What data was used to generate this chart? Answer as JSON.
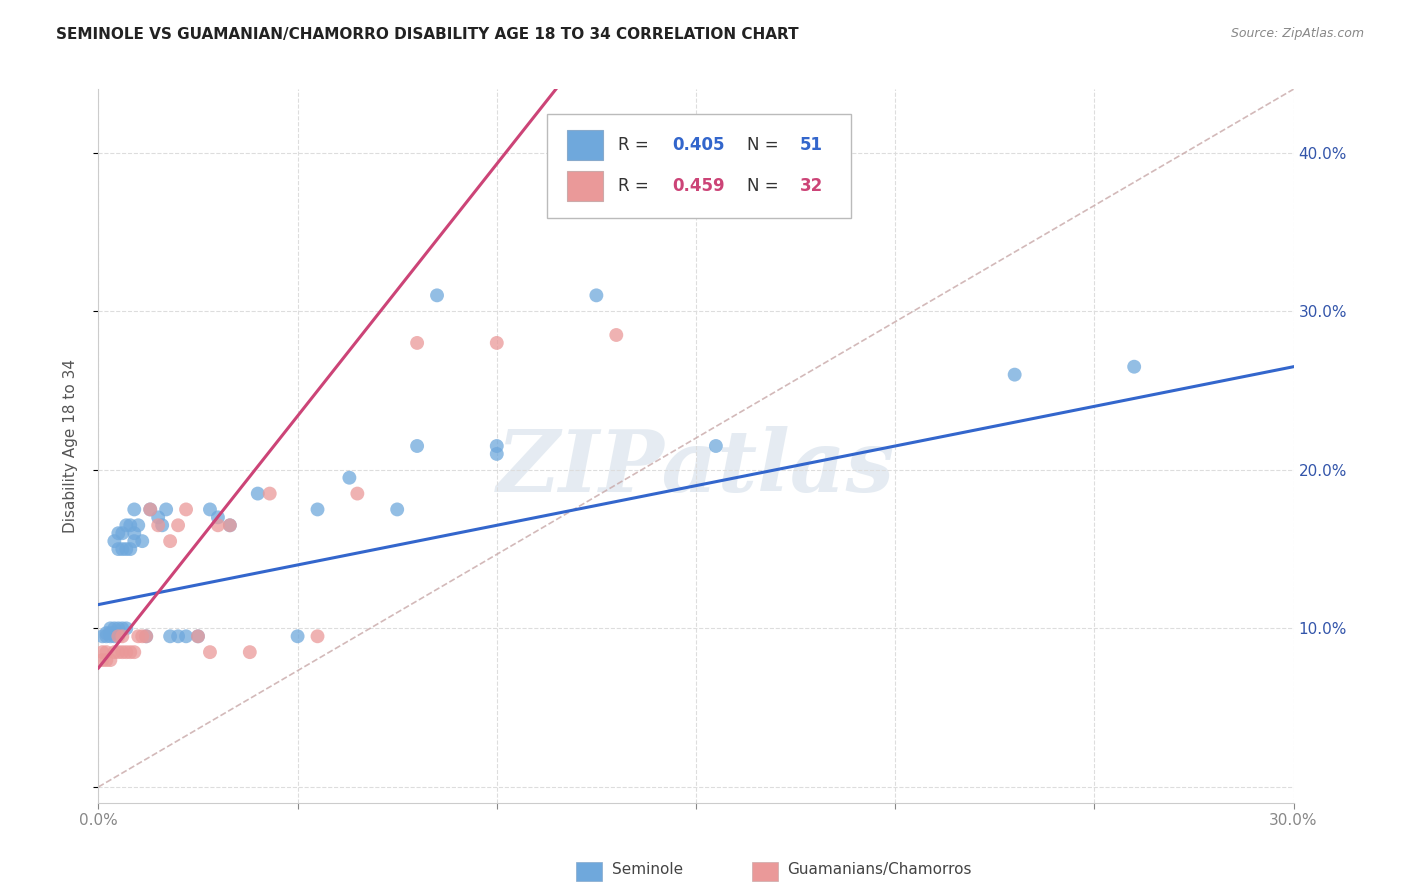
{
  "title": "SEMINOLE VS GUAMANIAN/CHAMORRO DISABILITY AGE 18 TO 34 CORRELATION CHART",
  "source": "Source: ZipAtlas.com",
  "ylabel_left": "Disability Age 18 to 34",
  "xlim": [
    0.0,
    0.3
  ],
  "ylim": [
    -0.01,
    0.44
  ],
  "seminole_color": "#6fa8dc",
  "guamanian_color": "#ea9999",
  "seminole_line_color": "#3366cc",
  "guamanian_line_color": "#cc4477",
  "diag_color": "#ccbbbb",
  "seminole_R": 0.405,
  "seminole_N": 51,
  "guamanian_R": 0.459,
  "guamanian_N": 32,
  "seminole_scatter_x": [
    0.001,
    0.002,
    0.002,
    0.003,
    0.003,
    0.003,
    0.004,
    0.004,
    0.004,
    0.004,
    0.005,
    0.005,
    0.005,
    0.006,
    0.006,
    0.006,
    0.007,
    0.007,
    0.007,
    0.008,
    0.008,
    0.009,
    0.009,
    0.009,
    0.01,
    0.011,
    0.012,
    0.013,
    0.015,
    0.016,
    0.017,
    0.018,
    0.02,
    0.022,
    0.025,
    0.028,
    0.03,
    0.033,
    0.04,
    0.05,
    0.055,
    0.063,
    0.075,
    0.08,
    0.085,
    0.1,
    0.1,
    0.125,
    0.155,
    0.23,
    0.26
  ],
  "seminole_scatter_y": [
    0.095,
    0.095,
    0.097,
    0.095,
    0.097,
    0.1,
    0.095,
    0.097,
    0.1,
    0.155,
    0.1,
    0.15,
    0.16,
    0.1,
    0.15,
    0.16,
    0.1,
    0.15,
    0.165,
    0.15,
    0.165,
    0.155,
    0.16,
    0.175,
    0.165,
    0.155,
    0.095,
    0.175,
    0.17,
    0.165,
    0.175,
    0.095,
    0.095,
    0.095,
    0.095,
    0.175,
    0.17,
    0.165,
    0.185,
    0.095,
    0.175,
    0.195,
    0.175,
    0.215,
    0.31,
    0.21,
    0.215,
    0.31,
    0.215,
    0.26,
    0.265
  ],
  "guamanian_scatter_x": [
    0.001,
    0.001,
    0.002,
    0.002,
    0.003,
    0.004,
    0.005,
    0.005,
    0.006,
    0.006,
    0.007,
    0.008,
    0.009,
    0.01,
    0.011,
    0.012,
    0.013,
    0.015,
    0.018,
    0.02,
    0.022,
    0.025,
    0.028,
    0.03,
    0.033,
    0.038,
    0.043,
    0.055,
    0.065,
    0.08,
    0.1,
    0.13
  ],
  "guamanian_scatter_y": [
    0.08,
    0.085,
    0.08,
    0.085,
    0.08,
    0.085,
    0.085,
    0.095,
    0.085,
    0.095,
    0.085,
    0.085,
    0.085,
    0.095,
    0.095,
    0.095,
    0.175,
    0.165,
    0.155,
    0.165,
    0.175,
    0.095,
    0.085,
    0.165,
    0.165,
    0.085,
    0.185,
    0.095,
    0.185,
    0.28,
    0.28,
    0.285
  ],
  "background_color": "#ffffff",
  "watermark_text": "ZIPatlas",
  "grid_color": "#dddddd"
}
